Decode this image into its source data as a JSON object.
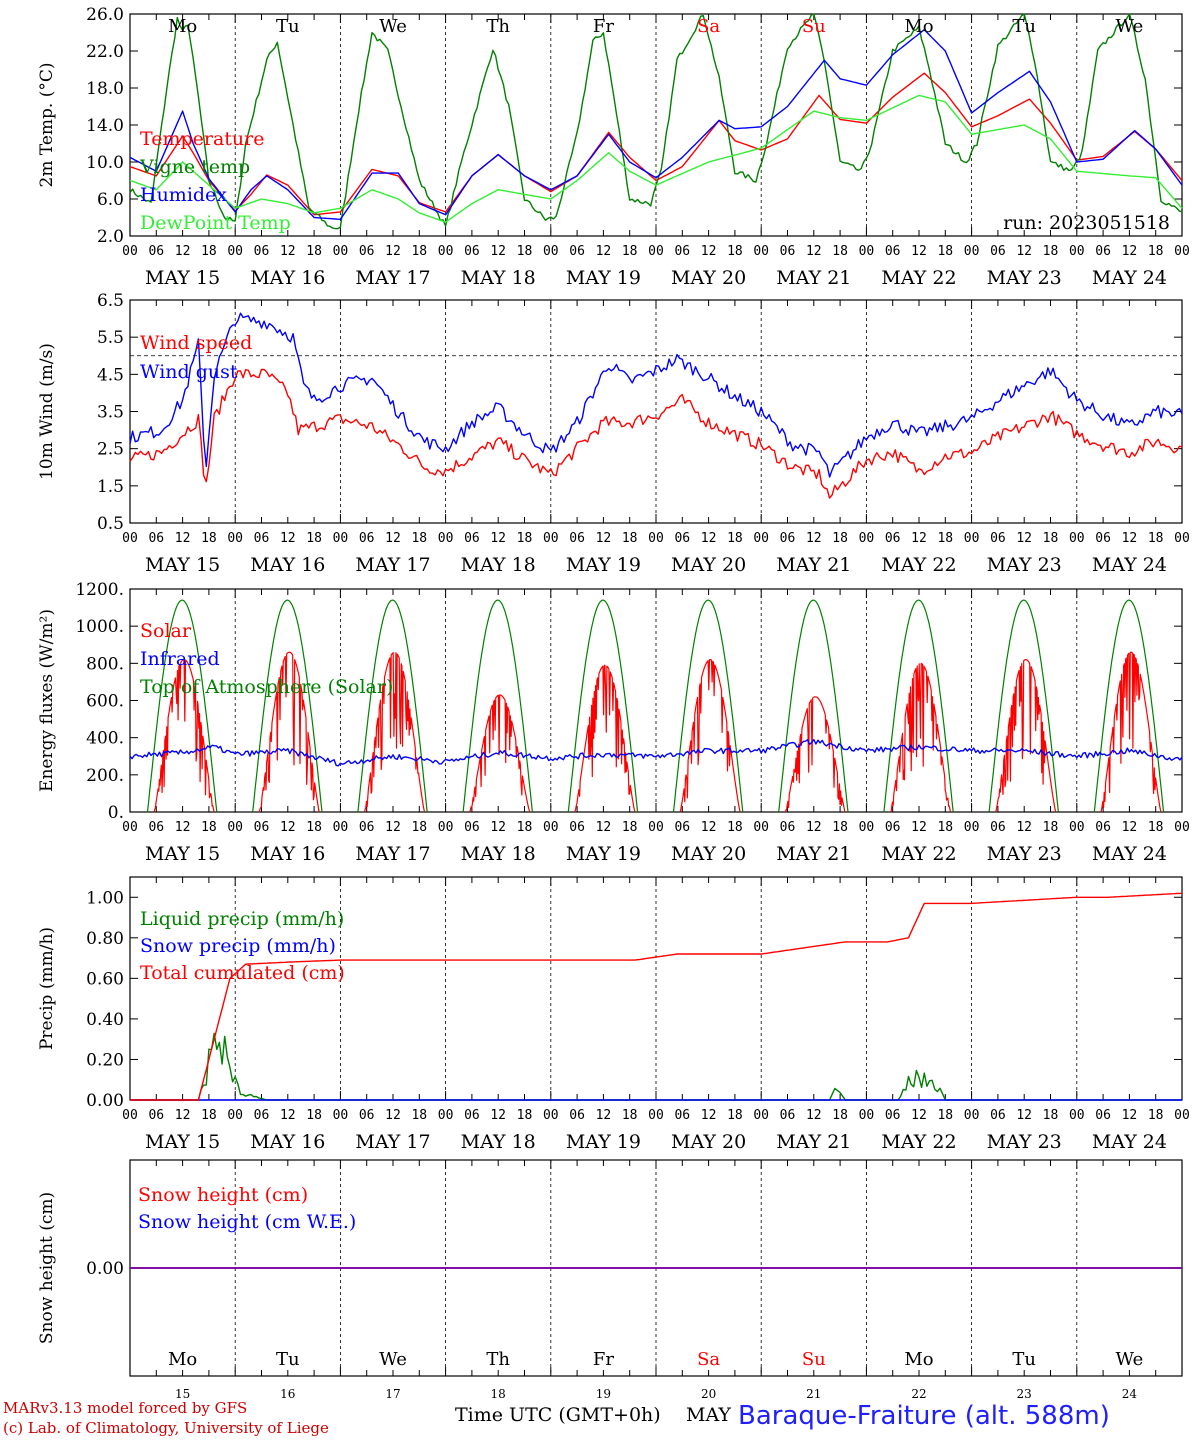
{
  "colors": {
    "red": "#ff0000",
    "green": "#008000",
    "lightgreen": "#33ee33",
    "blue": "#0000ff",
    "purple": "#8000a0",
    "weekend": "#ff0000",
    "site": "#2020ff",
    "footer": "#cc0000"
  },
  "day_abbr": [
    "Mo",
    "Tu",
    "We",
    "Th",
    "Fr",
    "Sa",
    "Su",
    "Mo",
    "Tu",
    "We"
  ],
  "day_weekend": [
    false,
    false,
    false,
    false,
    false,
    true,
    true,
    false,
    false,
    false
  ],
  "date_labels": [
    "MAY 15",
    "MAY 16",
    "MAY 17",
    "MAY 18",
    "MAY 19",
    "MAY 20",
    "MAY 21",
    "MAY 22",
    "MAY 23",
    "MAY 24"
  ],
  "hour_ticks": [
    "00",
    "06",
    "12",
    "18"
  ],
  "final_hour": "00",
  "date_numbers": [
    "15",
    "16",
    "17",
    "18",
    "19",
    "20",
    "21",
    "22",
    "23",
    "24"
  ],
  "footer": {
    "model": "MARv3.13 model forced by GFS",
    "copyright": "(c) Lab. of Climatology, University of Liege",
    "xaxis": "Time UTC (GMT+0h)",
    "month": "MAY",
    "site": "Baraque-Fraiture (alt. 588m)"
  },
  "chart_data": [
    {
      "type": "line",
      "ylabel": "2m Temp. (°C)",
      "ylim": [
        2,
        26
      ],
      "yticks": [
        "2.0",
        "6.0",
        "10.0",
        "14.0",
        "18.0",
        "22.0",
        "26.0"
      ],
      "annotation": "run: 2023051518",
      "x_unit": "day (0 = 2023-05-15 00 UTC)",
      "series": [
        {
          "name": "Temperature",
          "color": "red",
          "x": [
            0,
            0.25,
            0.5,
            0.6,
            0.75,
            1,
            1.15,
            1.3,
            1.5,
            1.75,
            2,
            2.3,
            2.55,
            2.75,
            3,
            3.25,
            3.5,
            3.75,
            4,
            4.25,
            4.55,
            4.75,
            5,
            5.25,
            5.6,
            5.75,
            6,
            6.25,
            6.55,
            6.75,
            7,
            7.25,
            7.55,
            7.75,
            8,
            8.25,
            8.55,
            8.75,
            9,
            9.25,
            9.55,
            9.75,
            10
          ],
          "y": [
            9.5,
            8.5,
            12.8,
            11,
            8,
            4.7,
            6.5,
            8.6,
            7.5,
            4.3,
            4.6,
            9.2,
            8.5,
            5.6,
            4.6,
            8.5,
            10.8,
            8.5,
            6.8,
            8.5,
            13.2,
            10.5,
            8,
            9.5,
            14.5,
            12.3,
            11.3,
            12.5,
            17.2,
            14.6,
            14.2,
            17,
            19.6,
            17.5,
            13.8,
            15,
            16.8,
            14.2,
            10.2,
            10.6,
            13.3,
            11.4,
            8
          ]
        },
        {
          "name": "Vigne temp",
          "color": "green",
          "x": [
            0,
            0.2,
            0.35,
            0.45,
            0.5,
            0.55,
            0.65,
            0.75,
            0.9,
            1,
            1.1,
            1.3,
            1.4,
            1.5,
            1.7,
            1.9,
            2,
            2.15,
            2.3,
            2.45,
            2.75,
            2.9,
            3,
            3.15,
            3.45,
            3.6,
            3.75,
            3.95,
            4.05,
            4.25,
            4.4,
            4.5,
            4.6,
            4.75,
            4.95,
            5.05,
            5.2,
            5.45,
            5.6,
            5.75,
            5.95,
            6.05,
            6.25,
            6.5,
            6.6,
            6.75,
            6.95,
            7.05,
            7.25,
            7.5,
            7.6,
            7.75,
            7.95,
            8.05,
            8.25,
            8.5,
            8.6,
            8.75,
            8.95,
            9.05,
            9.2,
            9.5,
            9.65,
            9.8,
            10
          ],
          "y": [
            7,
            5.5,
            18,
            25.5,
            24,
            25,
            17,
            8,
            4,
            3.5,
            12,
            21,
            23,
            17,
            5,
            3,
            2.8,
            14,
            24,
            22,
            8,
            5,
            3,
            10,
            22.3,
            16,
            6,
            3.8,
            4,
            13,
            23,
            24,
            17,
            6,
            5.5,
            9,
            21,
            26,
            19,
            9,
            8,
            12,
            22.5,
            26,
            21,
            10,
            9,
            12,
            22,
            24.5,
            20,
            12,
            10,
            12,
            22.5,
            26,
            21,
            10,
            9,
            11,
            22,
            26,
            19,
            6,
            4.5
          ]
        },
        {
          "name": "Humidex",
          "color": "blue",
          "x": [
            0,
            0.25,
            0.5,
            0.6,
            0.75,
            1,
            1.15,
            1.3,
            1.5,
            1.75,
            2,
            2.3,
            2.55,
            2.75,
            3,
            3.25,
            3.5,
            3.75,
            4,
            4.25,
            4.55,
            4.75,
            5,
            5.25,
            5.6,
            5.75,
            6,
            6.25,
            6.6,
            6.75,
            7,
            7.25,
            7.55,
            7.75,
            8,
            8.25,
            8.55,
            8.75,
            9,
            9.25,
            9.55,
            9.75,
            10
          ],
          "y": [
            10.5,
            9,
            15.5,
            12,
            8.2,
            4.6,
            7,
            8.5,
            7,
            4,
            3.8,
            8.8,
            8.8,
            5.5,
            4.3,
            8.5,
            10.8,
            8.5,
            7,
            8.5,
            13,
            10,
            8.3,
            10.5,
            14.5,
            13.6,
            13.8,
            16,
            21,
            19,
            18.3,
            21.6,
            24.3,
            22,
            15.3,
            17.5,
            19.8,
            16.5,
            10,
            10.3,
            13.4,
            11.4,
            7.5
          ]
        },
        {
          "name": "DewPoint Temp",
          "color": "lightgreen",
          "x": [
            0,
            0.25,
            0.5,
            0.75,
            1,
            1.25,
            1.5,
            1.75,
            2,
            2.3,
            2.55,
            2.75,
            3,
            3.25,
            3.5,
            3.75,
            4,
            4.25,
            4.55,
            4.75,
            5,
            5.5,
            6,
            6.5,
            6.75,
            7,
            7.5,
            7.75,
            8,
            8.5,
            8.75,
            9,
            9.5,
            9.75,
            10
          ],
          "y": [
            8,
            7,
            10,
            7.5,
            5,
            6,
            5.5,
            4.5,
            5,
            7,
            6,
            4.5,
            3.5,
            5.5,
            7,
            6.5,
            6,
            8,
            11,
            9,
            7.5,
            10,
            11.5,
            15.5,
            14.8,
            14.5,
            17.2,
            16.5,
            13,
            14,
            12.5,
            9,
            8.5,
            8.3,
            5
          ]
        }
      ]
    },
    {
      "type": "line",
      "ylabel": "10m Wind (m/s)",
      "ylim": [
        0.5,
        6.5
      ],
      "yticks": [
        "0.5",
        "1.5",
        "2.5",
        "3.5",
        "4.5",
        "5.5",
        "6.5"
      ],
      "reference_line": 5,
      "x_unit": "day (0 = 2023-05-15 00 UTC)",
      "series": [
        {
          "name": "Wind speed",
          "color": "red",
          "x": [
            0,
            0.3,
            0.5,
            0.65,
            0.72,
            0.8,
            1,
            1.3,
            1.5,
            1.6,
            1.75,
            2,
            2.3,
            2.6,
            2.8,
            3,
            3.25,
            3.5,
            3.75,
            4,
            4.25,
            4.5,
            4.75,
            5,
            5.25,
            5.5,
            5.75,
            6,
            6.3,
            6.55,
            6.65,
            7,
            7.25,
            7.5,
            7.75,
            8,
            8.25,
            8.5,
            8.75,
            9,
            9.25,
            9.5,
            9.75,
            10
          ],
          "y": [
            2.2,
            2.4,
            2.9,
            3.3,
            1.4,
            3.3,
            4.5,
            4.5,
            4,
            3,
            3.1,
            3.3,
            3.1,
            2.5,
            2,
            1.9,
            2.3,
            2.7,
            2.2,
            1.8,
            2.5,
            3.2,
            3.2,
            3.4,
            3.8,
            3.2,
            2.9,
            2.6,
            2,
            1.8,
            1.2,
            2.2,
            2.4,
            1.9,
            2.3,
            2.4,
            2.8,
            3.1,
            3.4,
            2.9,
            2.6,
            2.4,
            2.7,
            2.5
          ]
        },
        {
          "name": "Wind gust",
          "color": "blue",
          "x": [
            0,
            0.3,
            0.5,
            0.65,
            0.72,
            0.8,
            1,
            1.3,
            1.55,
            1.65,
            1.75,
            2,
            2.3,
            2.6,
            2.8,
            3,
            3.25,
            3.5,
            3.75,
            4,
            4.25,
            4.55,
            4.75,
            5,
            5.2,
            5.45,
            5.75,
            6,
            6.3,
            6.55,
            6.65,
            7,
            7.25,
            7.5,
            7.75,
            8,
            8.25,
            8.5,
            8.75,
            9,
            9.25,
            9.5,
            9.75,
            10
          ],
          "y": [
            2.8,
            3,
            3.8,
            5.3,
            1.9,
            4.5,
            6,
            5.9,
            5.5,
            4.2,
            3.8,
            4.2,
            4.4,
            3.3,
            2.7,
            2.5,
            3.2,
            3.6,
            2.9,
            2.4,
            3.2,
            4.8,
            4.3,
            4.6,
            4.9,
            4.5,
            3.9,
            3.5,
            2.6,
            2.4,
            1.8,
            2.8,
            3.2,
            2.9,
            3.1,
            3.3,
            3.8,
            4.2,
            4.6,
            3.8,
            3.4,
            3.1,
            3.5,
            3.4
          ]
        }
      ]
    },
    {
      "type": "line",
      "ylabel": "Energy fluxes (W/m²)",
      "ylim": [
        0,
        1200
      ],
      "yticks": [
        "0.",
        "200.",
        "400.",
        "600.",
        "800.",
        "1000.",
        "1200."
      ],
      "x_unit": "day (0 = 2023-05-15 00 UTC)",
      "toa_peak_w_m2": 1140,
      "toa_daylight_utc_hours": [
        4,
        19.8
      ],
      "series": [
        {
          "name": "Solar",
          "color": "red",
          "note": "daily peak values (W/m2)",
          "peaks": [
            820,
            860,
            860,
            630,
            790,
            820,
            620,
            800,
            820,
            860
          ]
        },
        {
          "name": "Infrared",
          "color": "blue",
          "x": [
            0,
            0.5,
            0.8,
            1,
            1.5,
            2,
            2.5,
            3,
            3.5,
            4,
            4.5,
            5,
            5.5,
            6,
            6.5,
            7,
            7.5,
            8,
            8.5,
            9,
            9.5,
            10
          ],
          "y": [
            300,
            320,
            350,
            310,
            330,
            260,
            300,
            270,
            320,
            290,
            310,
            300,
            330,
            330,
            380,
            330,
            350,
            330,
            330,
            300,
            330,
            280
          ]
        },
        {
          "name": "Top of Atmosphere (Solar)",
          "color": "green"
        }
      ]
    },
    {
      "type": "line",
      "ylabel": "Precip (mm/h)",
      "ylim": [
        0,
        1.1
      ],
      "yticks": [
        "0.00",
        "0.20",
        "0.40",
        "0.60",
        "0.80",
        "1.00"
      ],
      "x_unit": "day (0 = 2023-05-15 00 UTC)",
      "series": [
        {
          "name": "Liquid precip (mm/h)",
          "color": "green",
          "x": [
            0,
            0.65,
            0.72,
            0.78,
            0.82,
            0.88,
            0.95,
            1.05,
            1.15,
            1.3,
            6.65,
            6.7,
            6.8,
            7.3,
            7.4,
            7.45,
            7.55,
            7.65,
            7.75,
            10
          ],
          "y": [
            0,
            0,
            0.12,
            0.33,
            0.2,
            0.35,
            0.15,
            0.05,
            0.02,
            0,
            0,
            0.05,
            0,
            0,
            0.08,
            0.12,
            0.09,
            0.1,
            0,
            0
          ]
        },
        {
          "name": "Snow precip (mm/h)",
          "color": "blue",
          "x": [
            0,
            10
          ],
          "y": [
            0,
            0
          ]
        },
        {
          "name": "Total cumulated (cm)",
          "color": "red",
          "x": [
            0,
            0.65,
            0.8,
            0.95,
            1.1,
            1.5,
            2,
            4,
            4.8,
            5.2,
            6,
            6.8,
            7.2,
            7.4,
            7.55,
            8,
            9,
            9.3,
            10
          ],
          "y": [
            0,
            0,
            0.3,
            0.6,
            0.67,
            0.68,
            0.69,
            0.69,
            0.69,
            0.72,
            0.72,
            0.78,
            0.78,
            0.8,
            0.97,
            0.97,
            1.0,
            1.0,
            1.02
          ]
        }
      ]
    },
    {
      "type": "line",
      "ylabel": "Snow height (cm)",
      "yticks": [
        "0.00"
      ],
      "x_unit": "day (0 = 2023-05-15 00 UTC)",
      "series": [
        {
          "name": "Snow height (cm)",
          "color": "red",
          "x": [
            0,
            10
          ],
          "y": [
            0,
            0
          ]
        },
        {
          "name": "Snow height (cm W.E.)",
          "color": "blue",
          "x": [
            0,
            10
          ],
          "y": [
            0,
            0
          ]
        }
      ]
    }
  ]
}
